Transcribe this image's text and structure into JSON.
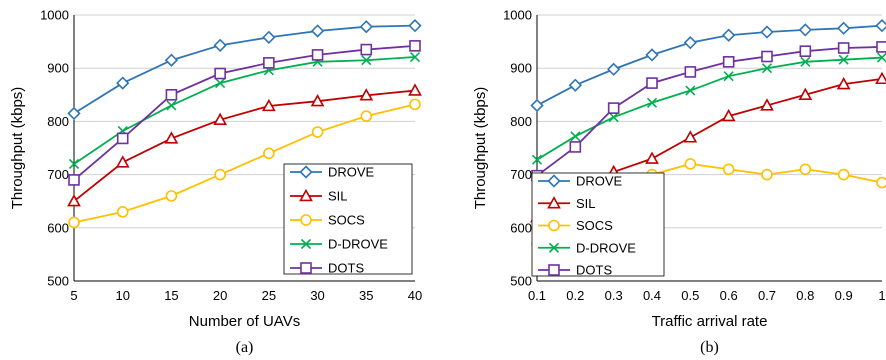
{
  "chart_data": [
    {
      "type": "line",
      "caption": "(a)",
      "xlabel": "Number of UAVs",
      "ylabel": "Throughput (kbps)",
      "x": [
        5,
        10,
        15,
        20,
        25,
        30,
        35,
        40
      ],
      "x_tick_labels": [
        "5",
        "10",
        "15",
        "20",
        "25",
        "30",
        "35",
        "40"
      ],
      "xlim": [
        5,
        40
      ],
      "ylim": [
        500,
        1000
      ],
      "y_ticks": [
        500,
        600,
        700,
        800,
        900,
        1000
      ],
      "y_tick_labels": [
        "500",
        "600",
        "700",
        "800",
        "900",
        "1000"
      ],
      "grid": true,
      "legend_position": "bottom-right",
      "series": [
        {
          "name": "DROVE",
          "color": "#2e75b6",
          "marker": "diamond",
          "values": [
            815,
            872,
            915,
            943,
            958,
            970,
            978,
            980
          ]
        },
        {
          "name": "SIL",
          "color": "#c00000",
          "marker": "triangle",
          "values": [
            650,
            723,
            768,
            803,
            829,
            838,
            849,
            858
          ]
        },
        {
          "name": "SOCS",
          "color": "#ffc000",
          "marker": "circle",
          "values": [
            610,
            630,
            660,
            700,
            740,
            780,
            810,
            832
          ]
        },
        {
          "name": "D-DROVE",
          "color": "#00b050",
          "marker": "x",
          "values": [
            720,
            782,
            830,
            872,
            896,
            912,
            915,
            921
          ]
        },
        {
          "name": "DOTS",
          "color": "#7030a0",
          "marker": "square",
          "values": [
            690,
            768,
            850,
            890,
            910,
            925,
            935,
            942
          ]
        }
      ]
    },
    {
      "type": "line",
      "caption": "(b)",
      "xlabel": "Traffic arrival rate",
      "ylabel": "Throughput (kbps)",
      "x": [
        0.1,
        0.2,
        0.3,
        0.4,
        0.5,
        0.6,
        0.7,
        0.8,
        0.9,
        1.0
      ],
      "x_tick_labels": [
        "0.1",
        "0.2",
        "0.3",
        "0.4",
        "0.5",
        "0.6",
        "0.7",
        "0.8",
        "0.9",
        "1"
      ],
      "xlim": [
        0.1,
        1.0
      ],
      "ylim": [
        500,
        1000
      ],
      "y_ticks": [
        500,
        600,
        700,
        800,
        900,
        1000
      ],
      "y_tick_labels": [
        "500",
        "600",
        "700",
        "800",
        "900",
        "1000"
      ],
      "grid": true,
      "legend_position": "bottom-right",
      "series": [
        {
          "name": "DROVE",
          "color": "#2e75b6",
          "marker": "diamond",
          "values": [
            830,
            868,
            898,
            925,
            948,
            962,
            968,
            972,
            975,
            980
          ]
        },
        {
          "name": "SIL",
          "color": "#c00000",
          "marker": "triangle",
          "values": [
            620,
            660,
            705,
            730,
            770,
            810,
            830,
            850,
            870,
            880
          ]
        },
        {
          "name": "SOCS",
          "color": "#ffc000",
          "marker": "circle",
          "values": [
            570,
            630,
            660,
            700,
            720,
            710,
            700,
            710,
            700,
            685
          ]
        },
        {
          "name": "D-DROVE",
          "color": "#00b050",
          "marker": "x",
          "values": [
            728,
            772,
            808,
            835,
            858,
            885,
            900,
            912,
            916,
            920
          ]
        },
        {
          "name": "DOTS",
          "color": "#7030a0",
          "marker": "square",
          "values": [
            698,
            752,
            825,
            872,
            893,
            912,
            922,
            932,
            938,
            940
          ]
        }
      ]
    }
  ]
}
